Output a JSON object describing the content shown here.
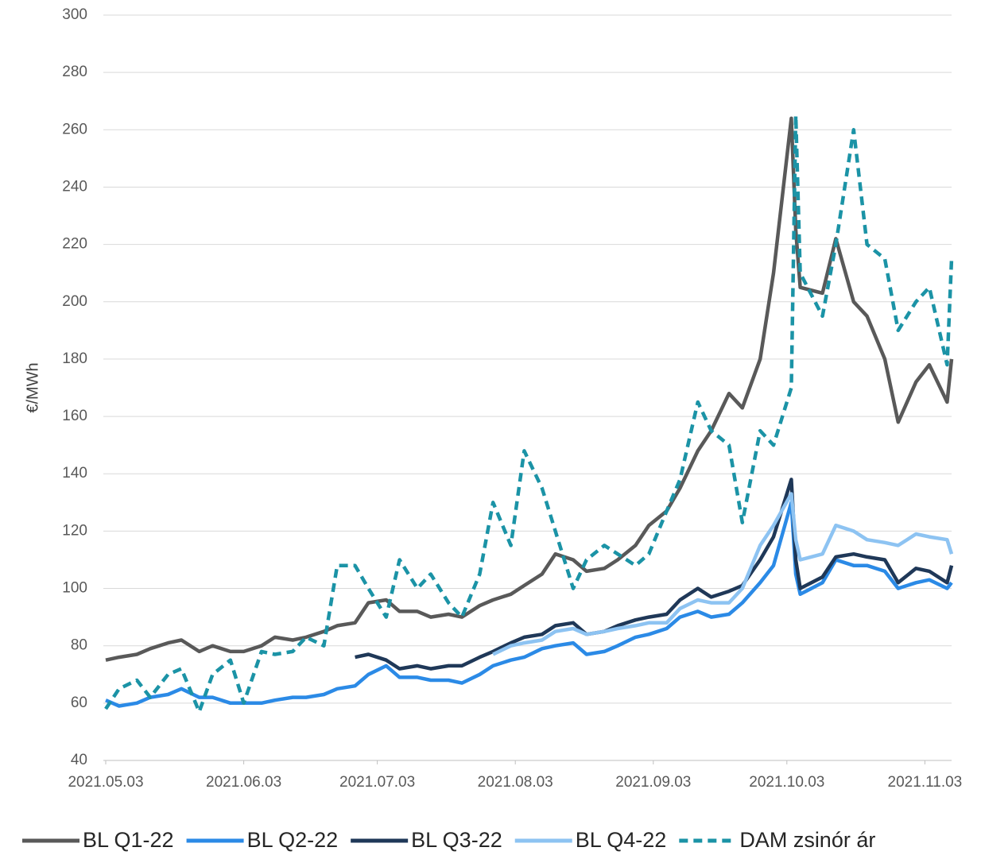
{
  "chart_data": {
    "type": "line",
    "y_label": "€/MWh",
    "x": [
      "2021.05.03",
      "2021.05.06",
      "2021.05.10",
      "2021.05.13",
      "2021.05.17",
      "2021.05.20",
      "2021.05.24",
      "2021.05.27",
      "2021.05.31",
      "2021.06.03",
      "2021.06.07",
      "2021.06.10",
      "2021.06.14",
      "2021.06.17",
      "2021.06.21",
      "2021.06.24",
      "2021.06.28",
      "2021.07.01",
      "2021.07.05",
      "2021.07.08",
      "2021.07.12",
      "2021.07.15",
      "2021.07.19",
      "2021.07.22",
      "2021.07.26",
      "2021.07.29",
      "2021.08.02",
      "2021.08.05",
      "2021.08.09",
      "2021.08.12",
      "2021.08.16",
      "2021.08.19",
      "2021.08.23",
      "2021.08.26",
      "2021.08.30",
      "2021.09.02",
      "2021.09.06",
      "2021.09.09",
      "2021.09.13",
      "2021.09.16",
      "2021.09.20",
      "2021.09.23",
      "2021.09.27",
      "2021.09.30",
      "2021.10.04",
      "2021.10.05",
      "2021.10.06",
      "2021.10.11",
      "2021.10.14",
      "2021.10.18",
      "2021.10.21",
      "2021.10.25",
      "2021.10.28",
      "2021.11.01",
      "2021.11.04",
      "2021.11.08",
      "2021.11.09"
    ],
    "series": [
      {
        "name": "BL Q1-22",
        "color": "#595959",
        "dashed": false,
        "values": [
          75,
          76,
          77,
          79,
          81,
          82,
          78,
          80,
          78,
          78,
          80,
          83,
          82,
          83,
          85,
          87,
          88,
          95,
          96,
          92,
          92,
          90,
          91,
          90,
          94,
          96,
          98,
          101,
          105,
          112,
          110,
          106,
          107,
          110,
          115,
          122,
          127,
          135,
          148,
          155,
          168,
          163,
          180,
          210,
          264,
          225,
          205,
          203,
          222,
          200,
          195,
          180,
          158,
          172,
          178,
          165,
          180
        ]
      },
      {
        "name": "BL Q2-22",
        "color": "#2b8ae6",
        "dashed": false,
        "values": [
          61,
          59,
          60,
          62,
          63,
          65,
          62,
          62,
          60,
          60,
          60,
          61,
          62,
          62,
          63,
          65,
          66,
          70,
          73,
          69,
          69,
          68,
          68,
          67,
          70,
          73,
          75,
          76,
          79,
          80,
          81,
          77,
          78,
          80,
          83,
          84,
          86,
          90,
          92,
          90,
          91,
          95,
          102,
          108,
          130,
          105,
          98,
          102,
          110,
          108,
          108,
          106,
          100,
          102,
          103,
          100,
          102
        ]
      },
      {
        "name": "BL Q3-22",
        "color": "#1f3858",
        "dashed": false,
        "values": [
          null,
          null,
          null,
          null,
          null,
          null,
          null,
          null,
          null,
          null,
          null,
          null,
          null,
          null,
          null,
          null,
          76,
          77,
          75,
          72,
          73,
          72,
          73,
          73,
          76,
          78,
          81,
          83,
          84,
          87,
          88,
          84,
          85,
          87,
          89,
          90,
          91,
          96,
          100,
          97,
          99,
          101,
          110,
          118,
          138,
          110,
          100,
          104,
          111,
          112,
          111,
          110,
          102,
          107,
          106,
          102,
          108
        ]
      },
      {
        "name": "BL Q4-22",
        "color": "#8dc3f2",
        "dashed": false,
        "values": [
          null,
          null,
          null,
          null,
          null,
          null,
          null,
          null,
          null,
          null,
          null,
          null,
          null,
          null,
          null,
          null,
          null,
          null,
          null,
          null,
          null,
          null,
          null,
          null,
          null,
          77,
          80,
          81,
          82,
          85,
          86,
          84,
          85,
          86,
          87,
          88,
          88,
          93,
          96,
          95,
          95,
          100,
          115,
          122,
          133,
          117,
          110,
          112,
          122,
          120,
          117,
          116,
          115,
          119,
          118,
          117,
          112
        ]
      },
      {
        "name": "DAM zsinór ár",
        "color": "#1b93a6",
        "dashed": true,
        "values": [
          58,
          65,
          68,
          62,
          70,
          72,
          57,
          70,
          75,
          60,
          78,
          77,
          78,
          83,
          80,
          108,
          108,
          100,
          90,
          110,
          100,
          105,
          95,
          90,
          105,
          130,
          115,
          148,
          135,
          120,
          100,
          110,
          115,
          112,
          108,
          112,
          127,
          138,
          165,
          155,
          150,
          123,
          155,
          150,
          170,
          265,
          210,
          195,
          220,
          260,
          220,
          215,
          190,
          200,
          205,
          178,
          215
        ]
      }
    ],
    "xlim": [
      "2021.05.03",
      "2021.11.09"
    ],
    "xticks": [
      "2021.05.03",
      "2021.06.03",
      "2021.07.03",
      "2021.08.03",
      "2021.09.03",
      "2021.10.03",
      "2021.11.03"
    ],
    "ylim": [
      40,
      300
    ],
    "yticks": [
      40,
      60,
      80,
      100,
      120,
      140,
      160,
      180,
      200,
      220,
      240,
      260,
      280,
      300
    ],
    "grid": true,
    "legend": "bottom"
  }
}
